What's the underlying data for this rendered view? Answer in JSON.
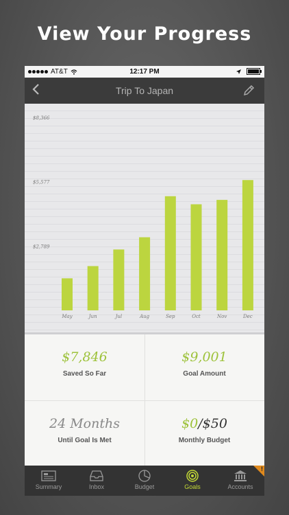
{
  "headline": "View Your Progress",
  "status": {
    "carrier": "AT&T",
    "time": "12:17 PM"
  },
  "nav": {
    "title": "Trip To Japan"
  },
  "chart_data": {
    "type": "bar",
    "categories": [
      "May",
      "Jun",
      "Jul",
      "Aug",
      "Sep",
      "Oct",
      "Nov",
      "Dec"
    ],
    "values": [
      1390,
      1920,
      2640,
      3170,
      4950,
      4600,
      4790,
      5650
    ],
    "ytick_labels": [
      "$8,366",
      "$5,577",
      "$2,789"
    ],
    "bar_color": "#bcd53f",
    "grid": true
  },
  "stats": {
    "saved": {
      "value": "$7,846",
      "label": "Saved So Far"
    },
    "goal": {
      "value": "$9,001",
      "label": "Goal Amount"
    },
    "months": {
      "value": "24 Months",
      "label": "Until Goal Is Met"
    },
    "budget": {
      "current": "$0",
      "separator": "/",
      "total": "$50",
      "label": "Monthly Budget"
    }
  },
  "tabs": [
    {
      "label": "Summary",
      "icon": "summary-icon"
    },
    {
      "label": "Inbox",
      "icon": "inbox-icon"
    },
    {
      "label": "Budget",
      "icon": "budget-icon"
    },
    {
      "label": "Goals",
      "icon": "goals-icon",
      "active": true
    },
    {
      "label": "Accounts",
      "icon": "accounts-icon",
      "badge": "!"
    }
  ],
  "colors": {
    "accent": "#c3d936",
    "green_text": "#9dc23a",
    "nav_bg": "#3b3b3b",
    "tab_bg": "#333333"
  }
}
